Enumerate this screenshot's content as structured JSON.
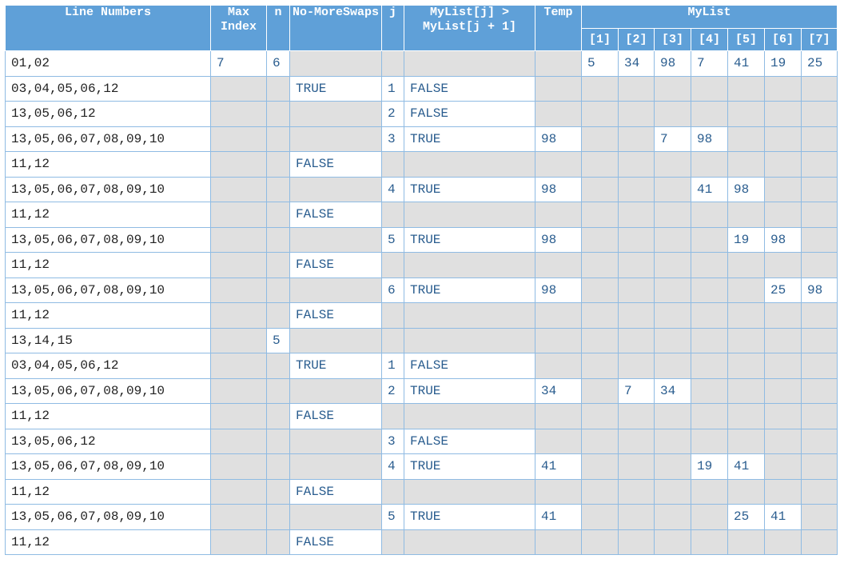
{
  "table": {
    "headers": [
      "Line Numbers",
      "Max Index",
      "n",
      "No-MoreSwaps",
      "j",
      "MyList[j] > MyList[j + 1]",
      "Temp"
    ],
    "group_header": "MyList",
    "sub_headers": [
      "[1]",
      "[2]",
      "[3]",
      "[4]",
      "[5]",
      "[6]",
      "[7]"
    ],
    "rows": [
      [
        "01,02",
        "7",
        "6",
        null,
        null,
        null,
        null,
        "5",
        "34",
        "98",
        "7",
        "41",
        "19",
        "25"
      ],
      [
        "03,04,05,06,12",
        null,
        null,
        "TRUE",
        "1",
        "FALSE",
        null,
        null,
        null,
        null,
        null,
        null,
        null,
        null
      ],
      [
        "13,05,06,12",
        null,
        null,
        null,
        "2",
        "FALSE",
        null,
        null,
        null,
        null,
        null,
        null,
        null,
        null
      ],
      [
        "13,05,06,07,08,09,10",
        null,
        null,
        null,
        "3",
        "TRUE",
        "98",
        null,
        null,
        "7",
        "98",
        null,
        null,
        null
      ],
      [
        "11,12",
        null,
        null,
        "FALSE",
        null,
        null,
        null,
        null,
        null,
        null,
        null,
        null,
        null,
        null
      ],
      [
        "13,05,06,07,08,09,10",
        null,
        null,
        null,
        "4",
        "TRUE",
        "98",
        null,
        null,
        null,
        "41",
        "98",
        null,
        null
      ],
      [
        "11,12",
        null,
        null,
        "FALSE",
        null,
        null,
        null,
        null,
        null,
        null,
        null,
        null,
        null,
        null
      ],
      [
        "13,05,06,07,08,09,10",
        null,
        null,
        null,
        "5",
        "TRUE",
        "98",
        null,
        null,
        null,
        null,
        "19",
        "98",
        null
      ],
      [
        "11,12",
        null,
        null,
        "FALSE",
        null,
        null,
        null,
        null,
        null,
        null,
        null,
        null,
        null,
        null
      ],
      [
        "13,05,06,07,08,09,10",
        null,
        null,
        null,
        "6",
        "TRUE",
        "98",
        null,
        null,
        null,
        null,
        null,
        "25",
        "98"
      ],
      [
        "11,12",
        null,
        null,
        "FALSE",
        null,
        null,
        null,
        null,
        null,
        null,
        null,
        null,
        null,
        null
      ],
      [
        "13,14,15",
        null,
        "5",
        null,
        null,
        null,
        null,
        null,
        null,
        null,
        null,
        null,
        null,
        null
      ],
      [
        "03,04,05,06,12",
        null,
        null,
        "TRUE",
        "1",
        "FALSE",
        null,
        null,
        null,
        null,
        null,
        null,
        null,
        null
      ],
      [
        "13,05,06,07,08,09,10",
        null,
        null,
        null,
        "2",
        "TRUE",
        "34",
        null,
        "7",
        "34",
        null,
        null,
        null,
        null
      ],
      [
        "11,12",
        null,
        null,
        "FALSE",
        null,
        null,
        null,
        null,
        null,
        null,
        null,
        null,
        null,
        null
      ],
      [
        "13,05,06,12",
        null,
        null,
        null,
        "3",
        "FALSE",
        null,
        null,
        null,
        null,
        null,
        null,
        null,
        null
      ],
      [
        "13,05,06,07,08,09,10",
        null,
        null,
        null,
        "4",
        "TRUE",
        "41",
        null,
        null,
        null,
        "19",
        "41",
        null,
        null
      ],
      [
        "11,12",
        null,
        null,
        "FALSE",
        null,
        null,
        null,
        null,
        null,
        null,
        null,
        null,
        null,
        null
      ],
      [
        "13,05,06,07,08,09,10",
        null,
        null,
        null,
        "5",
        "TRUE",
        "41",
        null,
        null,
        null,
        null,
        "25",
        "41",
        null
      ],
      [
        "11,12",
        null,
        null,
        "FALSE",
        null,
        null,
        null,
        null,
        null,
        null,
        null,
        null,
        null,
        null
      ]
    ]
  }
}
